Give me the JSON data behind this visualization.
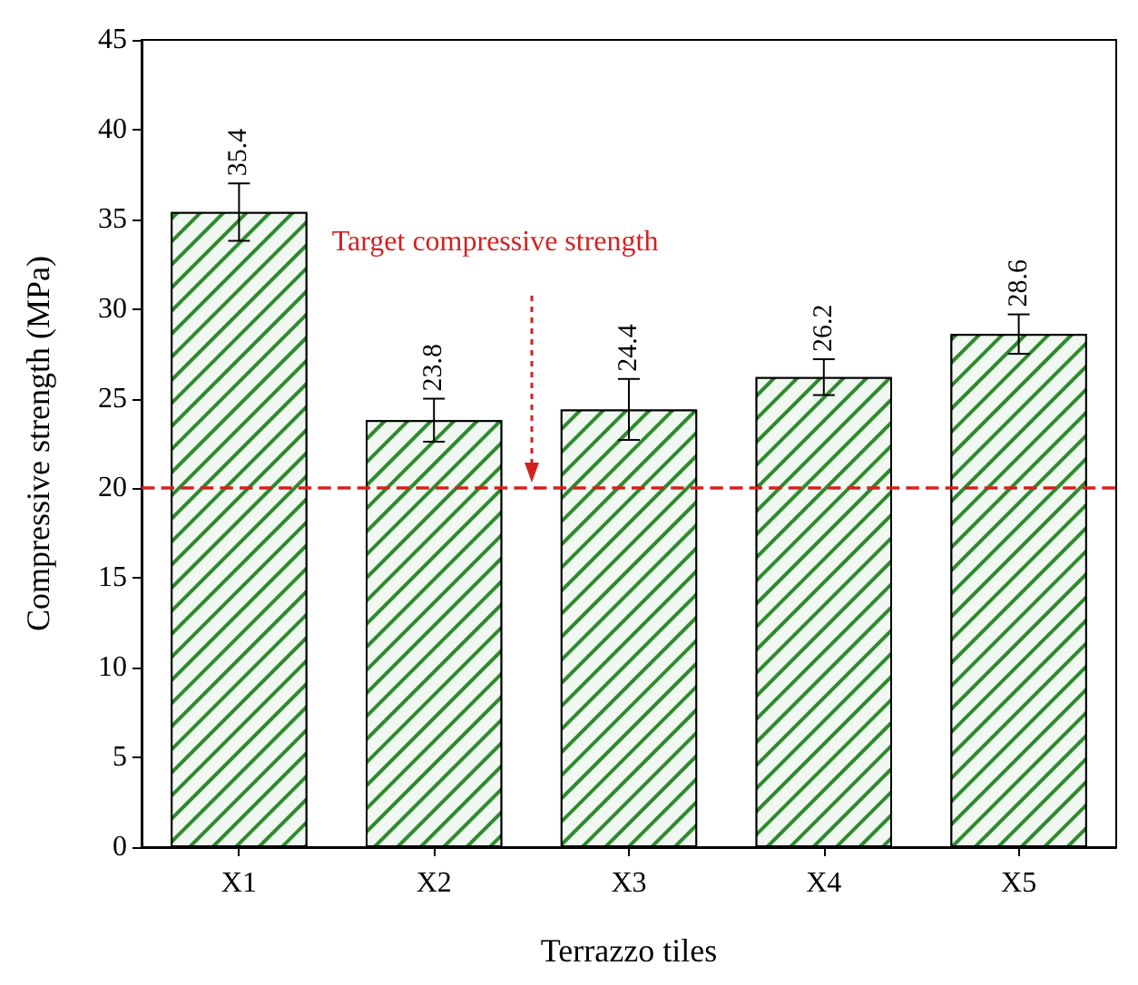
{
  "chart_data": {
    "type": "bar",
    "xlabel": "Terrazzo tiles",
    "ylabel": "Compressive strength (MPa)",
    "categories": [
      "X1",
      "X2",
      "X3",
      "X4",
      "X5"
    ],
    "values": [
      35.4,
      23.8,
      24.4,
      26.2,
      28.6
    ],
    "errors": [
      1.6,
      1.2,
      1.7,
      1.0,
      1.1
    ],
    "color": "#2e8b2e",
    "data_labels": true,
    "ylim": [
      0,
      45
    ],
    "yticks": [
      0,
      5,
      10,
      15,
      20,
      25,
      30,
      35,
      40,
      45
    ],
    "ref_lines": [
      {
        "axis": "y",
        "value": 20,
        "label": "Target compressive strength",
        "color": "#d62020",
        "line_style": "dashed"
      }
    ]
  }
}
